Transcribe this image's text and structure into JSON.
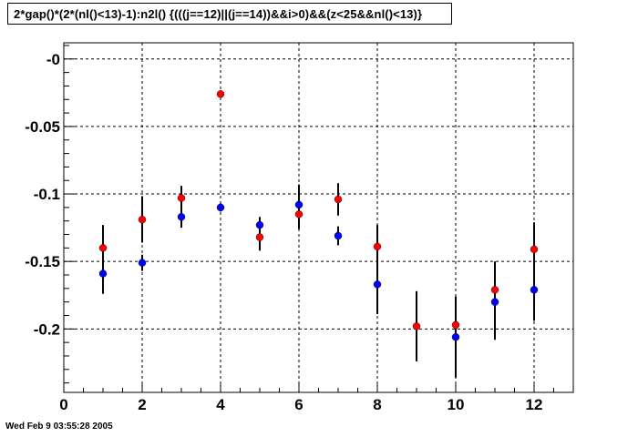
{
  "title": "2*gap()*(2*(nl()<13)-1):n2l() {(((j==12)||(j==14))&&i>0)&&(z<25&&nl()<13)}",
  "datestamp": "Wed Feb  9 03:55:28 2005",
  "chart_data": {
    "type": "scatter",
    "title": "2*gap()*(2*(nl()<13)-1):n2l() {(((j==12)||(j==14))&&i>0)&&(z<25&&nl()<13)}",
    "xlabel": "",
    "ylabel": "",
    "xlim": [
      0,
      13
    ],
    "ylim": [
      -0.247,
      0.012
    ],
    "grid": true,
    "x_ticks": [
      0,
      2,
      4,
      6,
      8,
      10,
      12
    ],
    "x_tick_labels": [
      "0",
      "2",
      "4",
      "6",
      "8",
      "10",
      "12"
    ],
    "y_ticks": [
      0,
      -0.05,
      -0.1,
      -0.15,
      -0.2
    ],
    "y_tick_labels": [
      "-0",
      "-0.05",
      "-0.1",
      "-0.15",
      "-0.2"
    ],
    "series": [
      {
        "color": "#ff0000",
        "points": [
          {
            "x": 1,
            "y": -0.14,
            "err": 0.017
          },
          {
            "x": 2,
            "y": -0.119,
            "err": 0.017
          },
          {
            "x": 3,
            "y": -0.103,
            "err": 0.009
          },
          {
            "x": 4,
            "y": -0.026,
            "err": 0
          },
          {
            "x": 5,
            "y": -0.132,
            "err": 0.01
          },
          {
            "x": 6,
            "y": -0.115,
            "err": 0.011
          },
          {
            "x": 7,
            "y": -0.104,
            "err": 0.012
          },
          {
            "x": 8,
            "y": -0.139,
            "err": 0.016
          },
          {
            "x": 9,
            "y": -0.198,
            "err": 0.026
          },
          {
            "x": 10,
            "y": -0.197,
            "err": 0.02
          },
          {
            "x": 11,
            "y": -0.171,
            "err": 0.021
          },
          {
            "x": 12,
            "y": -0.141,
            "err": 0.02
          }
        ]
      },
      {
        "color": "#0000ff",
        "points": [
          {
            "x": 1,
            "y": -0.159,
            "err": 0.015
          },
          {
            "x": 2,
            "y": -0.151,
            "err": 0.006
          },
          {
            "x": 3,
            "y": -0.117,
            "err": 0.008
          },
          {
            "x": 4,
            "y": -0.11,
            "err": 0.003
          },
          {
            "x": 5,
            "y": -0.123,
            "err": 0.006
          },
          {
            "x": 6,
            "y": -0.108,
            "err": 0.015
          },
          {
            "x": 7,
            "y": -0.131,
            "err": 0.007
          },
          {
            "x": 8,
            "y": -0.167,
            "err": 0.022
          },
          {
            "x": 10,
            "y": -0.206,
            "err": 0.03
          },
          {
            "x": 11,
            "y": -0.18,
            "err": 0.028
          },
          {
            "x": 12,
            "y": -0.171,
            "err": 0.023
          }
        ]
      }
    ]
  }
}
